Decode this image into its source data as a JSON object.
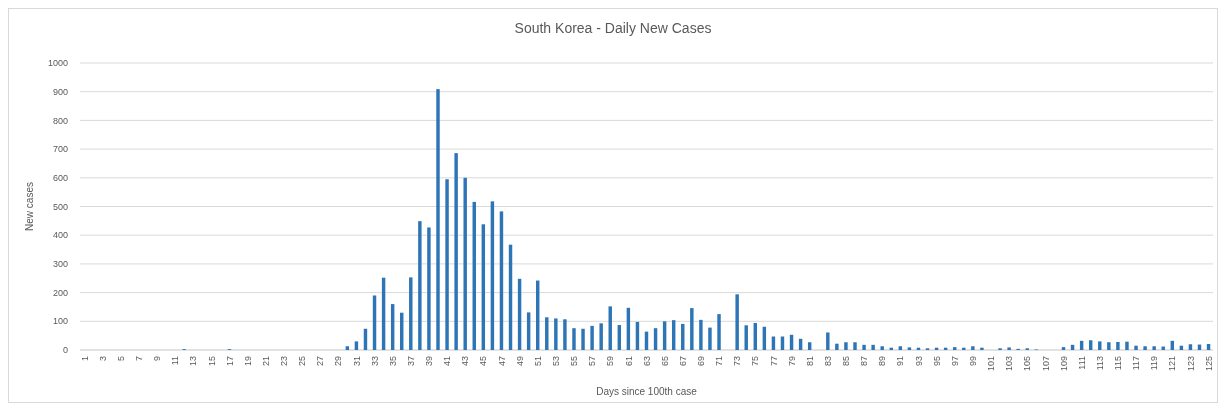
{
  "chart_data": {
    "type": "bar",
    "title": "South Korea - Daily New Cases",
    "xlabel": "Days since 100th case",
    "ylabel": "New cases",
    "categories": [
      "1",
      null,
      "3",
      null,
      "5",
      null,
      "7",
      null,
      "9",
      null,
      "11",
      null,
      "13",
      null,
      "15",
      null,
      "17",
      null,
      "19",
      null,
      "21",
      null,
      "23",
      null,
      "25",
      null,
      "27",
      null,
      "29",
      null,
      "31",
      null,
      "33",
      null,
      "35",
      null,
      "37",
      null,
      "39",
      null,
      "41",
      null,
      "43",
      null,
      "45",
      null,
      "47",
      null,
      "49",
      null,
      "51",
      null,
      "53",
      null,
      "55",
      null,
      "57",
      null,
      "59",
      null,
      "61",
      null,
      "63",
      null,
      "65",
      null,
      "67",
      null,
      "69",
      null,
      "71",
      null,
      "73",
      null,
      "75",
      null,
      "77",
      null,
      "79",
      null,
      "81",
      null,
      "83",
      null,
      "85",
      null,
      "87",
      null,
      "89",
      null,
      "91",
      null,
      "93",
      null,
      "95",
      null,
      "97",
      null,
      "99",
      null,
      "101",
      null,
      "103",
      null,
      "105",
      null,
      "107",
      null,
      "109",
      null,
      "111",
      null,
      "113",
      null,
      "115",
      null,
      "117",
      null,
      "119",
      null,
      "121",
      null,
      "123",
      null,
      "125"
    ],
    "values": [
      0,
      0,
      0,
      0,
      0,
      0,
      0,
      0,
      0,
      0,
      0,
      3,
      0,
      0,
      0,
      0,
      3,
      0,
      0,
      0,
      0,
      0,
      0,
      0,
      0,
      0,
      0,
      0,
      0,
      13,
      30,
      74,
      190,
      252,
      160,
      130,
      253,
      449,
      427,
      909,
      595,
      686,
      600,
      516,
      438,
      518,
      483,
      367,
      248,
      131,
      242,
      114,
      110,
      107,
      76,
      74,
      84,
      93,
      152,
      87,
      147,
      98,
      64,
      76,
      100,
      104,
      91,
      146,
      105,
      78,
      125,
      0,
      194,
      86,
      94,
      81,
      47,
      47,
      53,
      39,
      27,
      0,
      61,
      22,
      27,
      27,
      18,
      18,
      13,
      8,
      13,
      9,
      8,
      6,
      8,
      8,
      10,
      8,
      13,
      8,
      0,
      6,
      9,
      4,
      6,
      2,
      0,
      0,
      10,
      18,
      32,
      34,
      30,
      27,
      28,
      29,
      15,
      13,
      13,
      12,
      32,
      15,
      20,
      19,
      21
    ],
    "color": "#2e75b6",
    "ylim": [
      0,
      1000
    ],
    "yticks": [
      0,
      100,
      200,
      300,
      400,
      500,
      600,
      700,
      800,
      900,
      1000
    ],
    "grid": "y"
  }
}
